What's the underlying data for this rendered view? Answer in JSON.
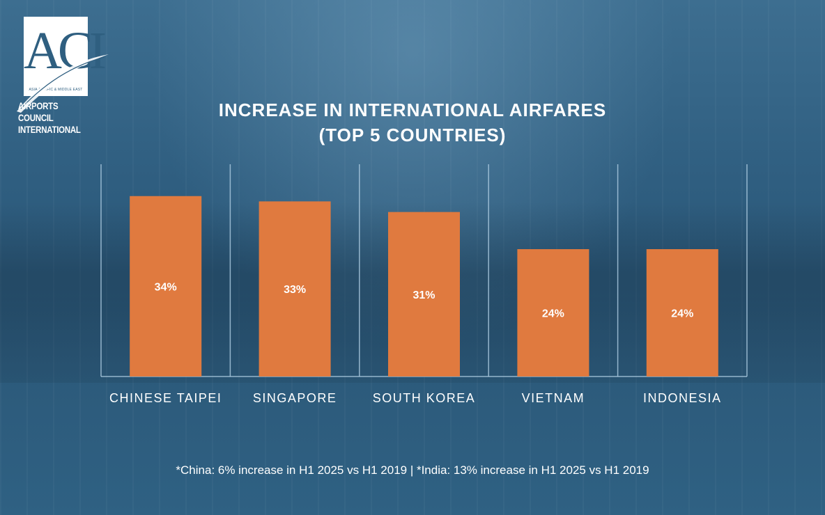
{
  "logo": {
    "letters": "ACI",
    "subtitle": "ASIA-PACIFIC & MIDDLE EAST",
    "name_line1": "AIRPORTS COUNCIL",
    "name_line2": "INTERNATIONAL"
  },
  "colors": {
    "bar": "#e07a3f",
    "gridline": "#a9c8de",
    "background": "#2f5f80",
    "text": "#ffffff"
  },
  "chart_data": {
    "type": "bar",
    "title": "INCREASE IN INTERNATIONAL AIRFARES",
    "subtitle": "(TOP 5 COUNTRIES)",
    "categories": [
      "CHINESE TAIPEI",
      "SINGAPORE",
      "SOUTH KOREA",
      "VIETNAM",
      "INDONESIA"
    ],
    "values": [
      34,
      33,
      31,
      24,
      24
    ],
    "data_labels": [
      "34%",
      "33%",
      "31%",
      "24%",
      "24%"
    ],
    "xlabel": "",
    "ylabel": "",
    "ylim": [
      0,
      40
    ],
    "grid": "vertical category separators",
    "legend": "none"
  },
  "footnote": "*China: 6% increase in H1 2025 vs H1 2019 | *India: 13% increase in H1 2025 vs H1 2019"
}
